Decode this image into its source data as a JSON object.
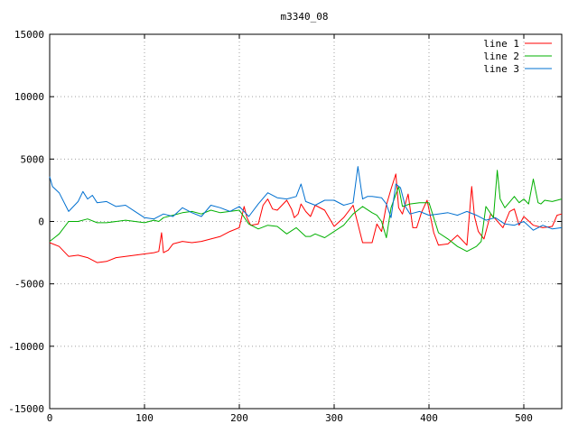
{
  "chart_data": {
    "type": "line",
    "title": "m3340_08",
    "xlabel": "",
    "ylabel": "",
    "xlim": [
      0,
      540
    ],
    "ylim": [
      -15000,
      15000
    ],
    "xticks": [
      0,
      100,
      200,
      300,
      400,
      500
    ],
    "yticks": [
      -15000,
      -10000,
      -5000,
      0,
      5000,
      10000,
      15000
    ],
    "grid": true,
    "legend_position": "top-right",
    "series": [
      {
        "name": "line 1",
        "color": "#ff0000",
        "x": [
          0,
          10,
          20,
          30,
          40,
          50,
          60,
          70,
          80,
          90,
          100,
          110,
          115,
          118,
          120,
          125,
          130,
          140,
          150,
          160,
          170,
          180,
          190,
          200,
          205,
          208,
          212,
          220,
          225,
          230,
          235,
          240,
          250,
          255,
          258,
          262,
          265,
          270,
          275,
          280,
          290,
          300,
          310,
          320,
          325,
          330,
          340,
          345,
          350,
          355,
          360,
          365,
          368,
          372,
          378,
          383,
          387,
          392,
          398,
          405,
          410,
          420,
          430,
          440,
          445,
          448,
          452,
          458,
          465,
          470,
          478,
          485,
          490,
          495,
          500,
          510,
          520,
          530,
          535,
          540
        ],
        "y": [
          -1700,
          -2000,
          -2800,
          -2700,
          -2900,
          -3300,
          -3200,
          -2900,
          -2800,
          -2700,
          -2600,
          -2500,
          -2400,
          -900,
          -2500,
          -2300,
          -1800,
          -1600,
          -1700,
          -1600,
          -1400,
          -1200,
          -800,
          -500,
          1200,
          300,
          -300,
          -200,
          1300,
          1800,
          1000,
          900,
          1700,
          1000,
          300,
          600,
          1400,
          800,
          400,
          1300,
          900,
          -400,
          300,
          1300,
          -200,
          -1700,
          -1700,
          -200,
          -800,
          1300,
          2600,
          3800,
          1100,
          600,
          2200,
          -500,
          -500,
          700,
          1700,
          -900,
          -1900,
          -1800,
          -1100,
          -1900,
          2800,
          400,
          -800,
          -1400,
          600,
          200,
          -500,
          800,
          1000,
          -300,
          400,
          -300,
          -500,
          -400,
          500,
          600
        ]
      },
      {
        "name": "line 2",
        "color": "#00b000",
        "x": [
          0,
          5,
          10,
          20,
          30,
          40,
          50,
          60,
          80,
          100,
          110,
          115,
          120,
          130,
          140,
          150,
          160,
          170,
          180,
          190,
          200,
          210,
          220,
          230,
          240,
          250,
          260,
          270,
          275,
          280,
          290,
          300,
          310,
          320,
          330,
          340,
          345,
          350,
          355,
          360,
          368,
          372,
          380,
          390,
          400,
          410,
          420,
          430,
          440,
          450,
          455,
          460,
          468,
          472,
          475,
          480,
          490,
          495,
          500,
          505,
          510,
          515,
          518,
          522,
          530,
          540
        ],
        "y": [
          -1600,
          -1300,
          -1000,
          0,
          0,
          200,
          -100,
          -100,
          100,
          -100,
          100,
          0,
          300,
          500,
          700,
          800,
          600,
          900,
          700,
          800,
          900,
          -200,
          -600,
          -300,
          -400,
          -1000,
          -500,
          -1200,
          -1200,
          -1000,
          -1300,
          -800,
          -300,
          600,
          1200,
          700,
          500,
          0,
          -1300,
          1100,
          2800,
          1200,
          1400,
          1500,
          1500,
          -900,
          -1400,
          -2000,
          -2400,
          -2000,
          -1600,
          1200,
          300,
          4100,
          1800,
          1100,
          2000,
          1500,
          1800,
          1400,
          3400,
          1500,
          1400,
          1700,
          1600,
          1800
        ]
      },
      {
        "name": "line 3",
        "color": "#0070d0",
        "x": [
          0,
          3,
          10,
          20,
          30,
          35,
          40,
          45,
          50,
          60,
          70,
          80,
          90,
          100,
          110,
          120,
          130,
          140,
          150,
          160,
          170,
          180,
          190,
          200,
          210,
          220,
          230,
          240,
          250,
          260,
          265,
          270,
          280,
          290,
          300,
          310,
          320,
          325,
          330,
          335,
          340,
          350,
          355,
          360,
          365,
          370,
          375,
          380,
          390,
          400,
          410,
          420,
          430,
          440,
          450,
          460,
          470,
          480,
          490,
          500,
          510,
          520,
          530,
          540
        ],
        "y": [
          3600,
          2800,
          2300,
          800,
          1600,
          2400,
          1800,
          2100,
          1500,
          1600,
          1200,
          1300,
          800,
          300,
          200,
          600,
          400,
          1100,
          700,
          400,
          1300,
          1100,
          800,
          1200,
          400,
          1400,
          2300,
          1900,
          1800,
          2000,
          3000,
          1600,
          1300,
          1700,
          1700,
          1300,
          1500,
          4400,
          1800,
          2000,
          2000,
          1900,
          1400,
          300,
          3000,
          2700,
          1200,
          600,
          800,
          500,
          600,
          700,
          500,
          800,
          500,
          100,
          300,
          -200,
          -300,
          0,
          -700,
          -300,
          -600,
          -500
        ]
      }
    ]
  }
}
